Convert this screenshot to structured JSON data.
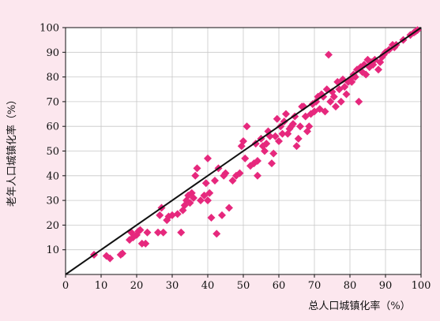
{
  "chart_data": {
    "type": "scatter",
    "xlabel": "总人口城镇化率（%）",
    "ylabel": "老年人口城镇化率（%）",
    "xlim": [
      0,
      100
    ],
    "ylim": [
      0,
      100
    ],
    "xticks": [
      0,
      10,
      20,
      30,
      40,
      50,
      60,
      70,
      80,
      90,
      100
    ],
    "yticks": [
      10,
      20,
      30,
      40,
      50,
      60,
      70,
      80,
      90,
      100
    ],
    "grid": true,
    "reference_line": {
      "from": [
        0,
        0
      ],
      "to": [
        100,
        100
      ],
      "color": "#111111"
    },
    "marker_color": "#e6287d",
    "background_color": "#fce7ee",
    "points": [
      [
        8,
        8
      ],
      [
        11.5,
        7.5
      ],
      [
        12.5,
        6.5
      ],
      [
        15.5,
        8
      ],
      [
        16,
        8.5
      ],
      [
        18,
        14
      ],
      [
        18.5,
        17
      ],
      [
        19,
        15
      ],
      [
        20,
        16
      ],
      [
        20.5,
        17.5
      ],
      [
        21,
        18
      ],
      [
        21.5,
        12.5
      ],
      [
        22.5,
        12.5
      ],
      [
        23,
        17
      ],
      [
        26,
        17
      ],
      [
        26.5,
        24
      ],
      [
        27,
        27
      ],
      [
        27.5,
        17
      ],
      [
        28.5,
        22
      ],
      [
        29,
        23.5
      ],
      [
        30,
        24
      ],
      [
        31.5,
        24.5
      ],
      [
        32.5,
        17
      ],
      [
        33,
        26
      ],
      [
        33.5,
        28
      ],
      [
        34,
        30
      ],
      [
        34.5,
        32
      ],
      [
        35,
        29
      ],
      [
        35.5,
        33
      ],
      [
        36,
        31
      ],
      [
        36.5,
        40
      ],
      [
        37,
        43
      ],
      [
        38,
        30
      ],
      [
        39,
        32
      ],
      [
        39.5,
        37
      ],
      [
        40,
        30
      ],
      [
        40.5,
        33
      ],
      [
        40,
        47
      ],
      [
        41,
        23
      ],
      [
        42,
        38
      ],
      [
        42.5,
        16.5
      ],
      [
        43,
        43
      ],
      [
        44,
        24
      ],
      [
        44.5,
        40
      ],
      [
        45,
        41
      ],
      [
        46,
        27
      ],
      [
        47,
        38
      ],
      [
        48,
        40
      ],
      [
        49,
        41
      ],
      [
        49.5,
        52
      ],
      [
        50,
        54
      ],
      [
        50.5,
        47
      ],
      [
        51,
        60
      ],
      [
        52,
        44
      ],
      [
        53,
        45
      ],
      [
        53.5,
        53
      ],
      [
        54,
        46
      ],
      [
        54,
        40
      ],
      [
        55,
        55
      ],
      [
        55.5,
        52
      ],
      [
        56,
        50
      ],
      [
        56.5,
        53
      ],
      [
        57,
        58
      ],
      [
        57.5,
        56
      ],
      [
        58,
        45
      ],
      [
        58.5,
        49
      ],
      [
        59,
        56
      ],
      [
        59.5,
        63
      ],
      [
        60,
        54
      ],
      [
        60.5,
        60
      ],
      [
        61,
        57
      ],
      [
        61.5,
        62
      ],
      [
        62,
        65
      ],
      [
        62.5,
        57
      ],
      [
        63,
        59
      ],
      [
        63.5,
        60
      ],
      [
        64,
        61
      ],
      [
        64.5,
        64
      ],
      [
        65,
        52
      ],
      [
        65.5,
        55
      ],
      [
        66,
        60
      ],
      [
        66.5,
        68
      ],
      [
        67,
        68
      ],
      [
        67.5,
        64
      ],
      [
        68,
        58
      ],
      [
        68.5,
        60
      ],
      [
        69,
        65
      ],
      [
        69.5,
        69
      ],
      [
        70,
        66
      ],
      [
        70.5,
        70
      ],
      [
        71,
        72
      ],
      [
        71.5,
        67
      ],
      [
        72,
        73
      ],
      [
        72.5,
        72
      ],
      [
        73,
        66
      ],
      [
        73.5,
        75
      ],
      [
        74,
        89
      ],
      [
        74.5,
        70
      ],
      [
        75,
        74
      ],
      [
        75.5,
        72
      ],
      [
        76,
        68
      ],
      [
        76.5,
        78
      ],
      [
        77,
        75
      ],
      [
        77.5,
        70
      ],
      [
        78,
        79
      ],
      [
        78.5,
        76
      ],
      [
        79,
        73
      ],
      [
        79.5,
        78
      ],
      [
        80,
        79
      ],
      [
        80.5,
        78
      ],
      [
        81,
        81
      ],
      [
        81.5,
        80
      ],
      [
        82,
        83
      ],
      [
        82.5,
        70
      ],
      [
        83,
        84
      ],
      [
        83.5,
        82
      ],
      [
        84,
        85
      ],
      [
        84.5,
        81
      ],
      [
        85,
        87
      ],
      [
        85.5,
        84
      ],
      [
        86,
        86
      ],
      [
        86.5,
        85
      ],
      [
        87,
        87
      ],
      [
        88,
        83
      ],
      [
        88.5,
        86
      ],
      [
        89,
        88
      ],
      [
        89.5,
        89
      ],
      [
        90,
        90
      ],
      [
        91,
        91
      ],
      [
        92,
        93
      ],
      [
        92.5,
        92
      ],
      [
        93,
        93
      ],
      [
        95,
        95
      ],
      [
        97,
        97
      ],
      [
        98,
        98
      ],
      [
        98.5,
        98.5
      ],
      [
        99,
        99
      ]
    ]
  }
}
